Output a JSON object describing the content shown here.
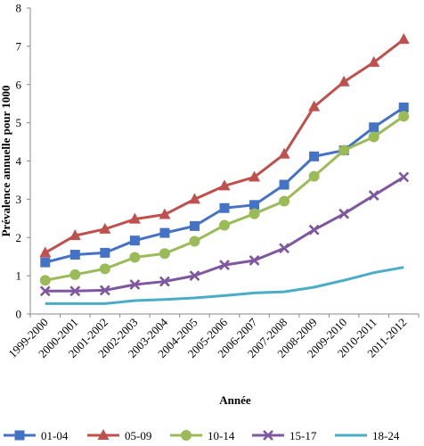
{
  "chart_data": {
    "type": "line",
    "title": "",
    "xlabel": "Année",
    "ylabel": "Prévalence annuelle pour 1000",
    "ylim": [
      0,
      8
    ],
    "yticks": [
      0,
      1,
      2,
      3,
      4,
      5,
      6,
      7,
      8
    ],
    "grid": false,
    "legend_position": "bottom",
    "categories": [
      "1999-2000",
      "2000-2001",
      "2001-2002",
      "2002-2003",
      "2003-2004",
      "2004-2005",
      "2005-2006",
      "2006-2007",
      "2007-2008",
      "2008-2009",
      "2009-2010",
      "2010-2011",
      "2011-2012"
    ],
    "series": [
      {
        "name": "01-04",
        "color": "#4472C4",
        "marker": "square",
        "values": [
          1.35,
          1.55,
          1.6,
          1.92,
          2.12,
          2.3,
          2.77,
          2.85,
          3.38,
          4.12,
          4.28,
          4.88,
          5.4
        ]
      },
      {
        "name": "05-09",
        "color": "#C0504D",
        "marker": "triangle",
        "values": [
          1.6,
          2.05,
          2.22,
          2.48,
          2.6,
          3.0,
          3.35,
          3.58,
          4.18,
          5.42,
          6.07,
          6.58,
          7.18
        ]
      },
      {
        "name": "10-14",
        "color": "#9BBB59",
        "marker": "circle",
        "values": [
          0.88,
          1.03,
          1.18,
          1.48,
          1.58,
          1.9,
          2.32,
          2.62,
          2.95,
          3.6,
          4.28,
          4.63,
          5.17
        ]
      },
      {
        "name": "15-17",
        "color": "#7E57A0",
        "marker": "x",
        "values": [
          0.6,
          0.6,
          0.62,
          0.77,
          0.85,
          1.0,
          1.28,
          1.4,
          1.72,
          2.2,
          2.62,
          3.1,
          3.58
        ]
      },
      {
        "name": "18-24",
        "color": "#4BACC6",
        "marker": "none",
        "values": [
          0.27,
          0.27,
          0.27,
          0.35,
          0.38,
          0.42,
          0.48,
          0.55,
          0.58,
          0.7,
          0.88,
          1.08,
          1.22
        ]
      }
    ]
  }
}
